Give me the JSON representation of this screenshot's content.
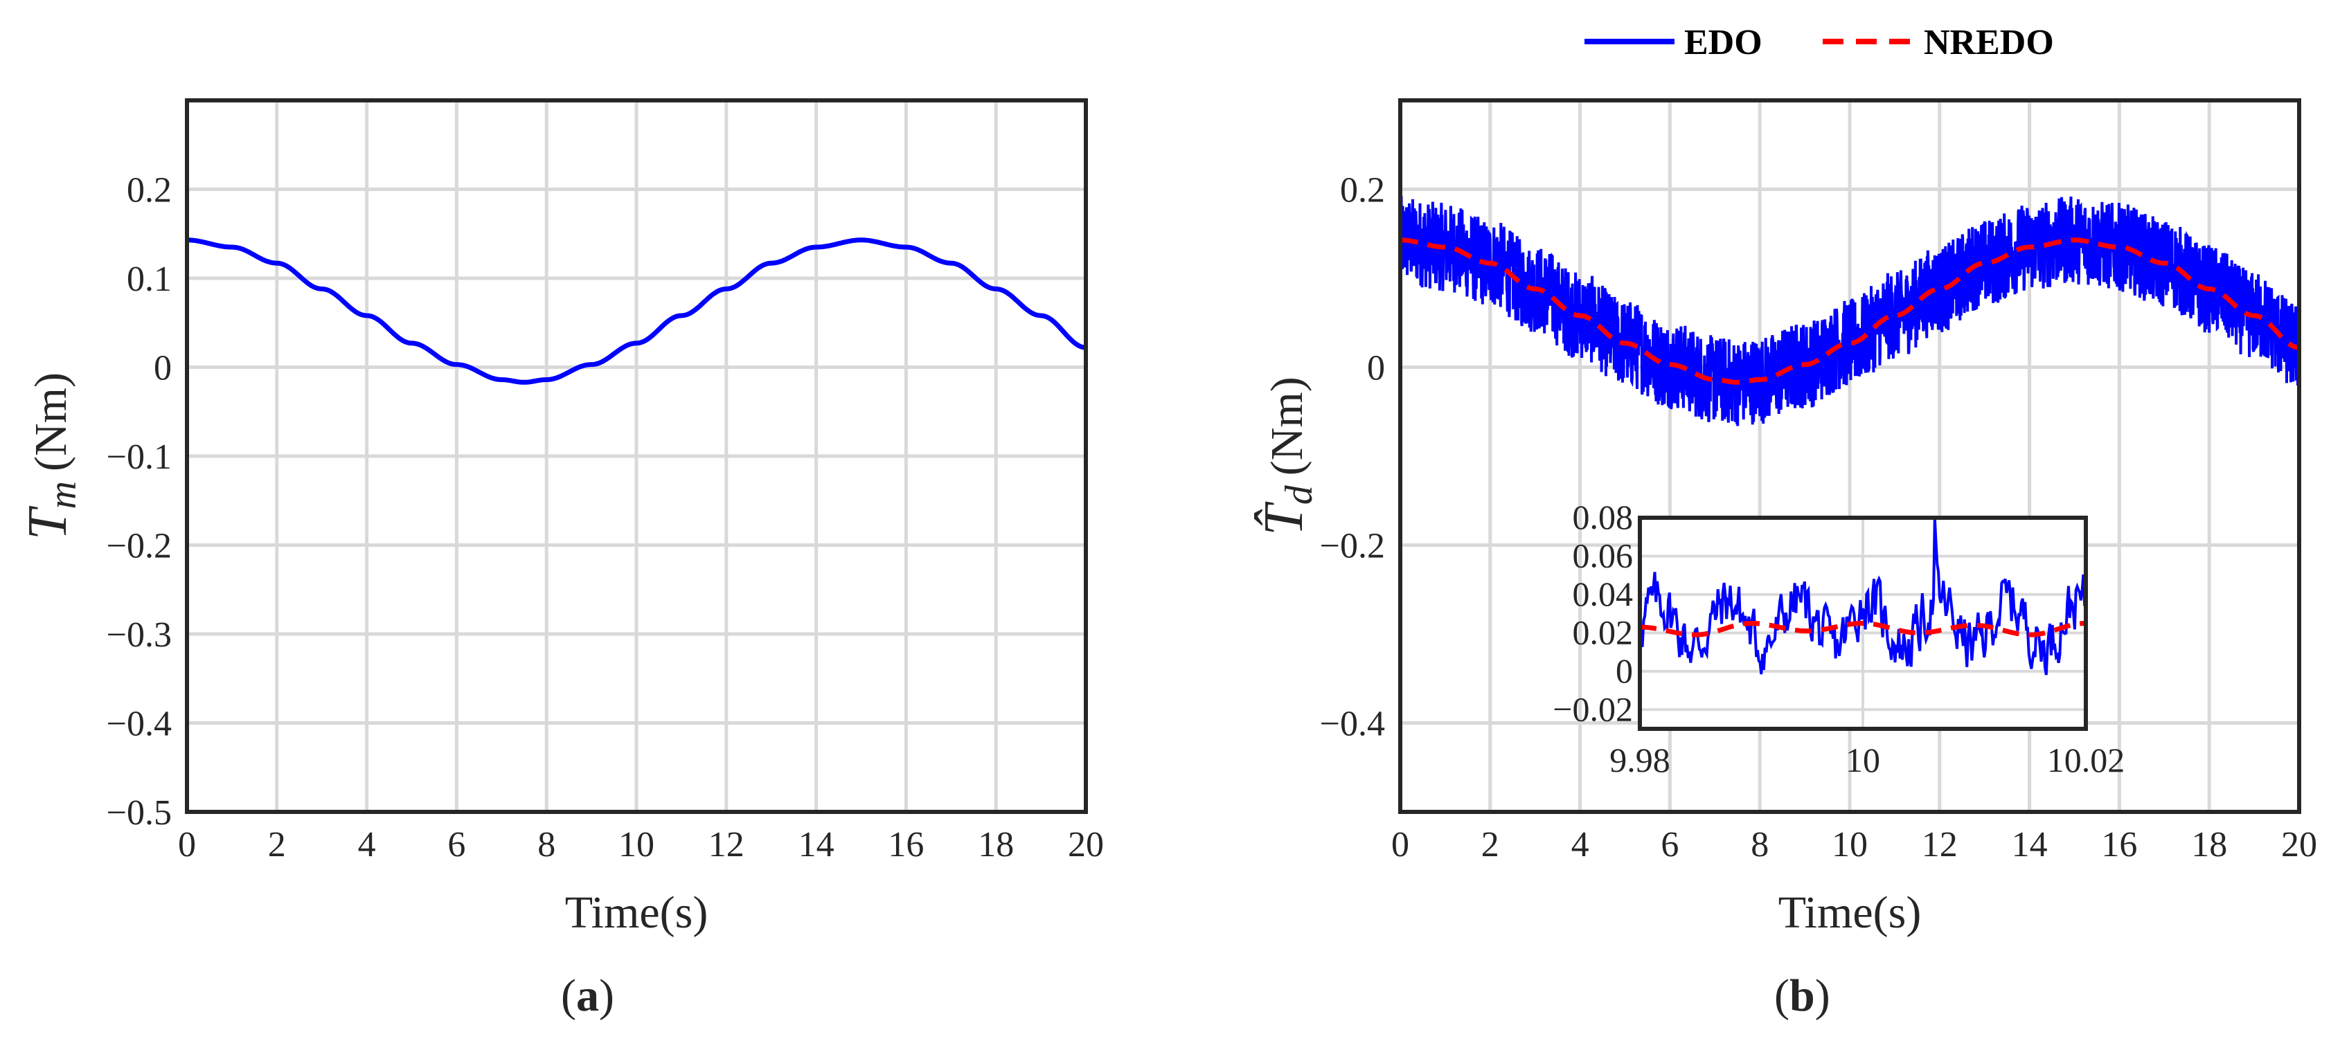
{
  "legend": [
    {
      "label": "EDO",
      "color": "#0000ff",
      "style": "solid"
    },
    {
      "label": "NREDO",
      "color": "#ff0000",
      "style": "dashed"
    }
  ],
  "panels": [
    {
      "label_open": "(",
      "label_letter": "a",
      "label_close": ")"
    },
    {
      "label_open": "(",
      "label_letter": "b",
      "label_close": ")"
    }
  ],
  "chart_data": [
    {
      "type": "line",
      "panel": "a",
      "xlabel": "Time(s)",
      "ylabel_symbol": "T",
      "ylabel_subscript": "m",
      "ylabel_unit": "(Nm)",
      "xlim": [
        0,
        20
      ],
      "ylim": [
        -0.5,
        0.3
      ],
      "xticks": [
        "0",
        "2",
        "4",
        "6",
        "8",
        "10",
        "12",
        "14",
        "16",
        "18",
        "20"
      ],
      "yticks": [
        "−0.5",
        "−0.4",
        "−0.3",
        "−0.2",
        "−0.1",
        "0",
        "0.1",
        "0.2"
      ],
      "grid": true,
      "series": [
        {
          "color": "#0000ff",
          "x": [
            0,
            1,
            2,
            3,
            4,
            5,
            6,
            7,
            7.5,
            8,
            9,
            10,
            11,
            12,
            13,
            14,
            15,
            16,
            17,
            18,
            19,
            20
          ],
          "y": [
            0.143,
            0.135,
            0.117,
            0.088,
            0.058,
            0.027,
            0.003,
            -0.014,
            -0.017,
            -0.014,
            0.003,
            0.027,
            0.058,
            0.088,
            0.117,
            0.135,
            0.143,
            0.135,
            0.117,
            0.088,
            0.058,
            0.022
          ]
        }
      ]
    },
    {
      "type": "line",
      "panel": "b",
      "xlabel": "Time(s)",
      "ylabel_symbol": "T̂",
      "ylabel_subscript": "d",
      "ylabel_unit": "(Nm)",
      "xlim": [
        0,
        20
      ],
      "ylim": [
        -0.5,
        0.3
      ],
      "xticks": [
        "0",
        "2",
        "4",
        "6",
        "8",
        "10",
        "12",
        "14",
        "16",
        "18",
        "20"
      ],
      "yticks": [
        "−0.4",
        "−0.2",
        "0",
        "0.2"
      ],
      "grid": true,
      "series": [
        {
          "name": "EDO",
          "color": "#0000ff",
          "noise_band": 0.05,
          "x": [
            0,
            1,
            2,
            3,
            4,
            5,
            6,
            7,
            7.5,
            8,
            9,
            10,
            11,
            12,
            13,
            14,
            15,
            16,
            17,
            18,
            19,
            20
          ],
          "y": [
            0.143,
            0.135,
            0.117,
            0.088,
            0.058,
            0.027,
            0.003,
            -0.014,
            -0.017,
            -0.014,
            0.003,
            0.027,
            0.058,
            0.088,
            0.117,
            0.135,
            0.143,
            0.135,
            0.117,
            0.088,
            0.058,
            0.022
          ]
        },
        {
          "name": "NREDO",
          "color": "#ff0000",
          "x": [
            0,
            1,
            2,
            3,
            4,
            5,
            6,
            7,
            7.5,
            8,
            9,
            10,
            11,
            12,
            13,
            14,
            15,
            16,
            17,
            18,
            19,
            20
          ],
          "y": [
            0.143,
            0.135,
            0.117,
            0.088,
            0.058,
            0.027,
            0.003,
            -0.014,
            -0.017,
            -0.014,
            0.003,
            0.027,
            0.058,
            0.088,
            0.117,
            0.135,
            0.143,
            0.135,
            0.117,
            0.088,
            0.058,
            0.022
          ]
        }
      ],
      "inset": {
        "xlim": [
          9.98,
          10.02
        ],
        "ylim": [
          -0.03,
          0.08
        ],
        "xticks": [
          "9.98",
          "10",
          "10.02"
        ],
        "yticks": [
          "−0.02",
          "0",
          "0.02",
          "0.04",
          "0.06",
          "0.08"
        ],
        "series": [
          {
            "name": "EDO",
            "color": "#0000ff",
            "center": 0.025,
            "noise_amplitude": 0.03,
            "peak": 0.08
          },
          {
            "name": "NREDO",
            "color": "#ff0000",
            "x": [
              9.98,
              9.985,
              9.99,
              9.995,
              10.0,
              10.005,
              10.01,
              10.015,
              10.02
            ],
            "y": [
              0.023,
              0.019,
              0.025,
              0.021,
              0.025,
              0.02,
              0.024,
              0.019,
              0.025
            ]
          }
        ]
      }
    }
  ]
}
